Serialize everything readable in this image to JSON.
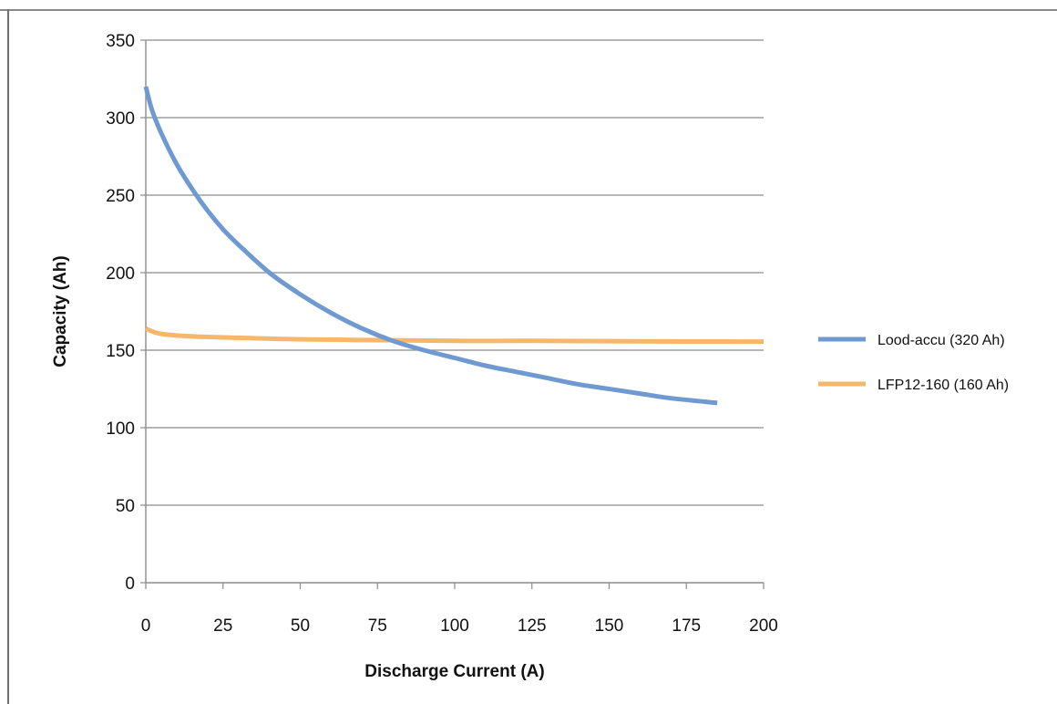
{
  "chart_data": {
    "type": "line",
    "xlabel": "Discharge Current (A)",
    "ylabel": "Capacity (Ah)",
    "xlim": [
      0,
      200
    ],
    "ylim": [
      0,
      350
    ],
    "x_ticks": [
      0,
      25,
      50,
      75,
      100,
      125,
      150,
      175,
      200
    ],
    "y_ticks": [
      0,
      50,
      100,
      150,
      200,
      250,
      300,
      350
    ],
    "grid": "horizontal",
    "legend_position": "right",
    "series": [
      {
        "name": "Lood-accu (320 Ah)",
        "color": "#6f9ad1",
        "x": [
          0,
          2,
          5,
          10,
          15,
          20,
          25,
          30,
          40,
          50,
          60,
          70,
          80,
          90,
          100,
          110,
          120,
          130,
          140,
          150,
          160,
          170,
          185
        ],
        "y": [
          320,
          305,
          290,
          270,
          254,
          240,
          228,
          218,
          200,
          186,
          174,
          164,
          156,
          150,
          145,
          140,
          136,
          132,
          128,
          125,
          122,
          119,
          116
        ]
      },
      {
        "name": "LFP12-160 (160 Ah)",
        "color": "#f7b76a",
        "x": [
          0,
          1,
          3,
          5,
          10,
          20,
          30,
          50,
          75,
          100,
          125,
          150,
          175,
          200
        ],
        "y": [
          164,
          163,
          161.5,
          160.5,
          159.5,
          158.5,
          158,
          157,
          156.5,
          156,
          156,
          155.8,
          155.6,
          155.5
        ]
      }
    ]
  }
}
